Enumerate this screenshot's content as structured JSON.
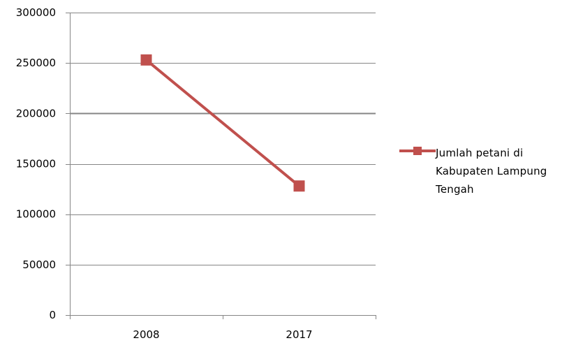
{
  "chart_data": {
    "type": "line",
    "categories": [
      "2008",
      "2017"
    ],
    "series": [
      {
        "name": "Jumlah petani di Kabupaten Lampung Tengah",
        "values": [
          253000,
          128000
        ]
      }
    ],
    "y_ticks": [
      "0",
      "50000",
      "100000",
      "150000",
      "200000",
      "250000",
      "300000"
    ],
    "ylim": [
      0,
      300000
    ],
    "title": "",
    "xlabel": "",
    "ylabel": "",
    "grid": true,
    "legend_position": "right",
    "colors": {
      "series": "#c0504d",
      "grid": "#868686",
      "axis": "#868686"
    }
  }
}
